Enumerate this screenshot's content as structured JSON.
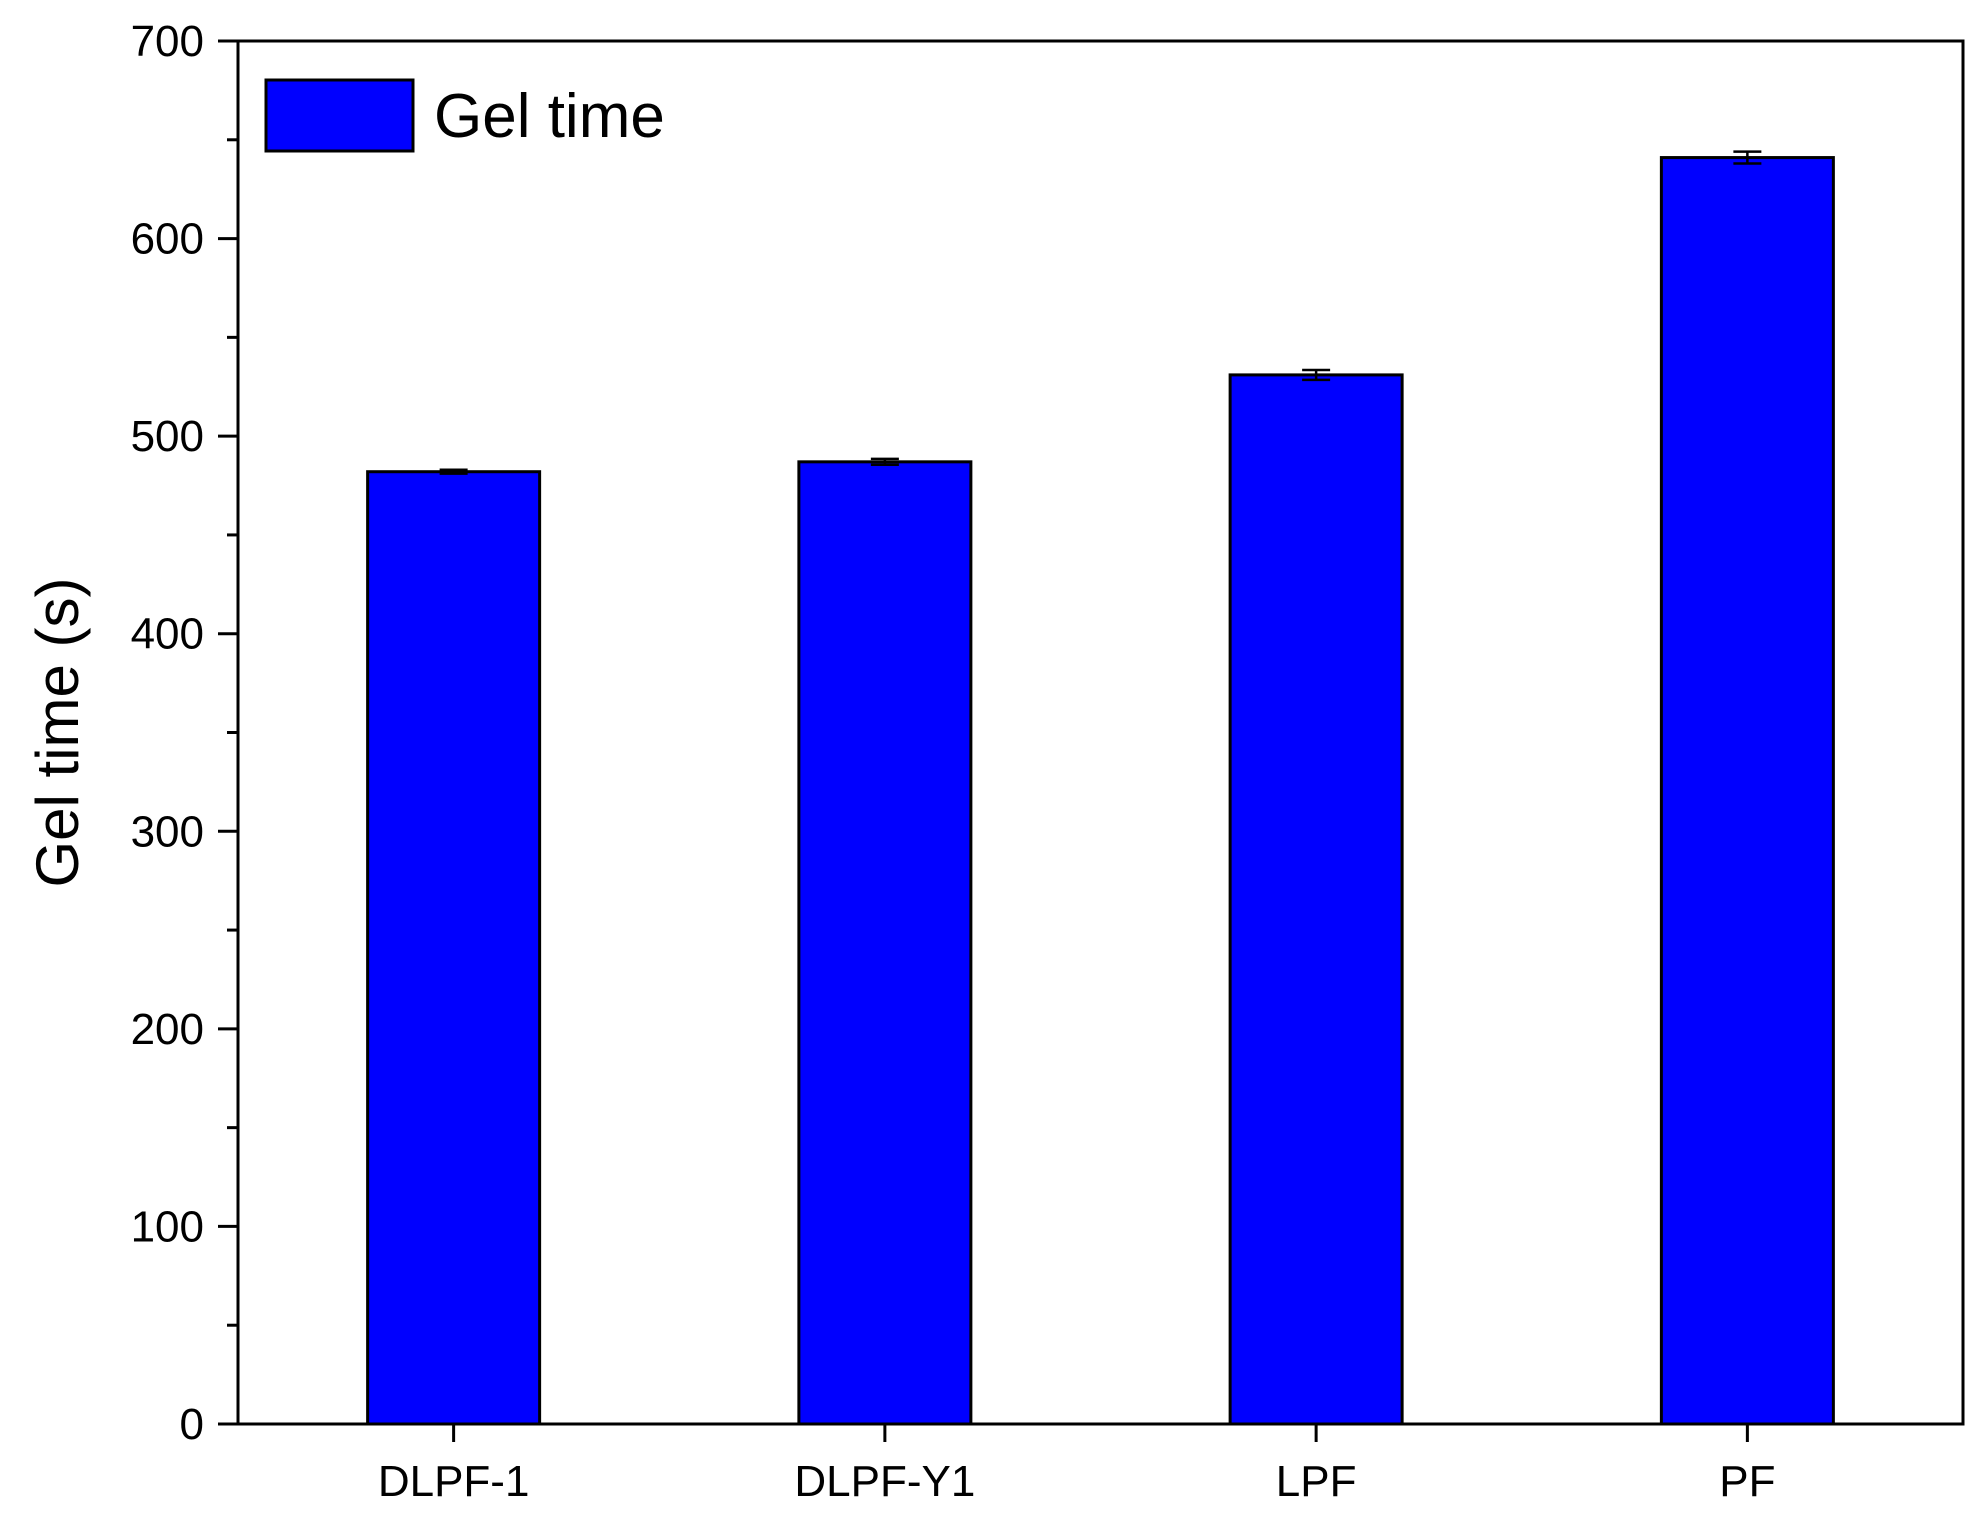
{
  "chart_data": {
    "type": "bar",
    "categories": [
      "DLPF-1",
      "DLPF-Y1",
      "LPF",
      "PF"
    ],
    "series": [
      {
        "name": "Gel time",
        "values": [
          482,
          487,
          531,
          641
        ],
        "errors": [
          1,
          1.5,
          2.5,
          3
        ],
        "color": "#0000FF"
      }
    ],
    "title": "",
    "xlabel": "",
    "ylabel": "Gel time (s)",
    "ylim": [
      0,
      700
    ],
    "yticks": [
      0,
      100,
      200,
      300,
      400,
      500,
      600,
      700
    ],
    "ytick_labels": [
      "0",
      "100",
      "200",
      "300",
      "400",
      "500",
      "600",
      "700"
    ],
    "grid": false,
    "legend": {
      "position": "top-left",
      "label": "Gel time"
    }
  }
}
